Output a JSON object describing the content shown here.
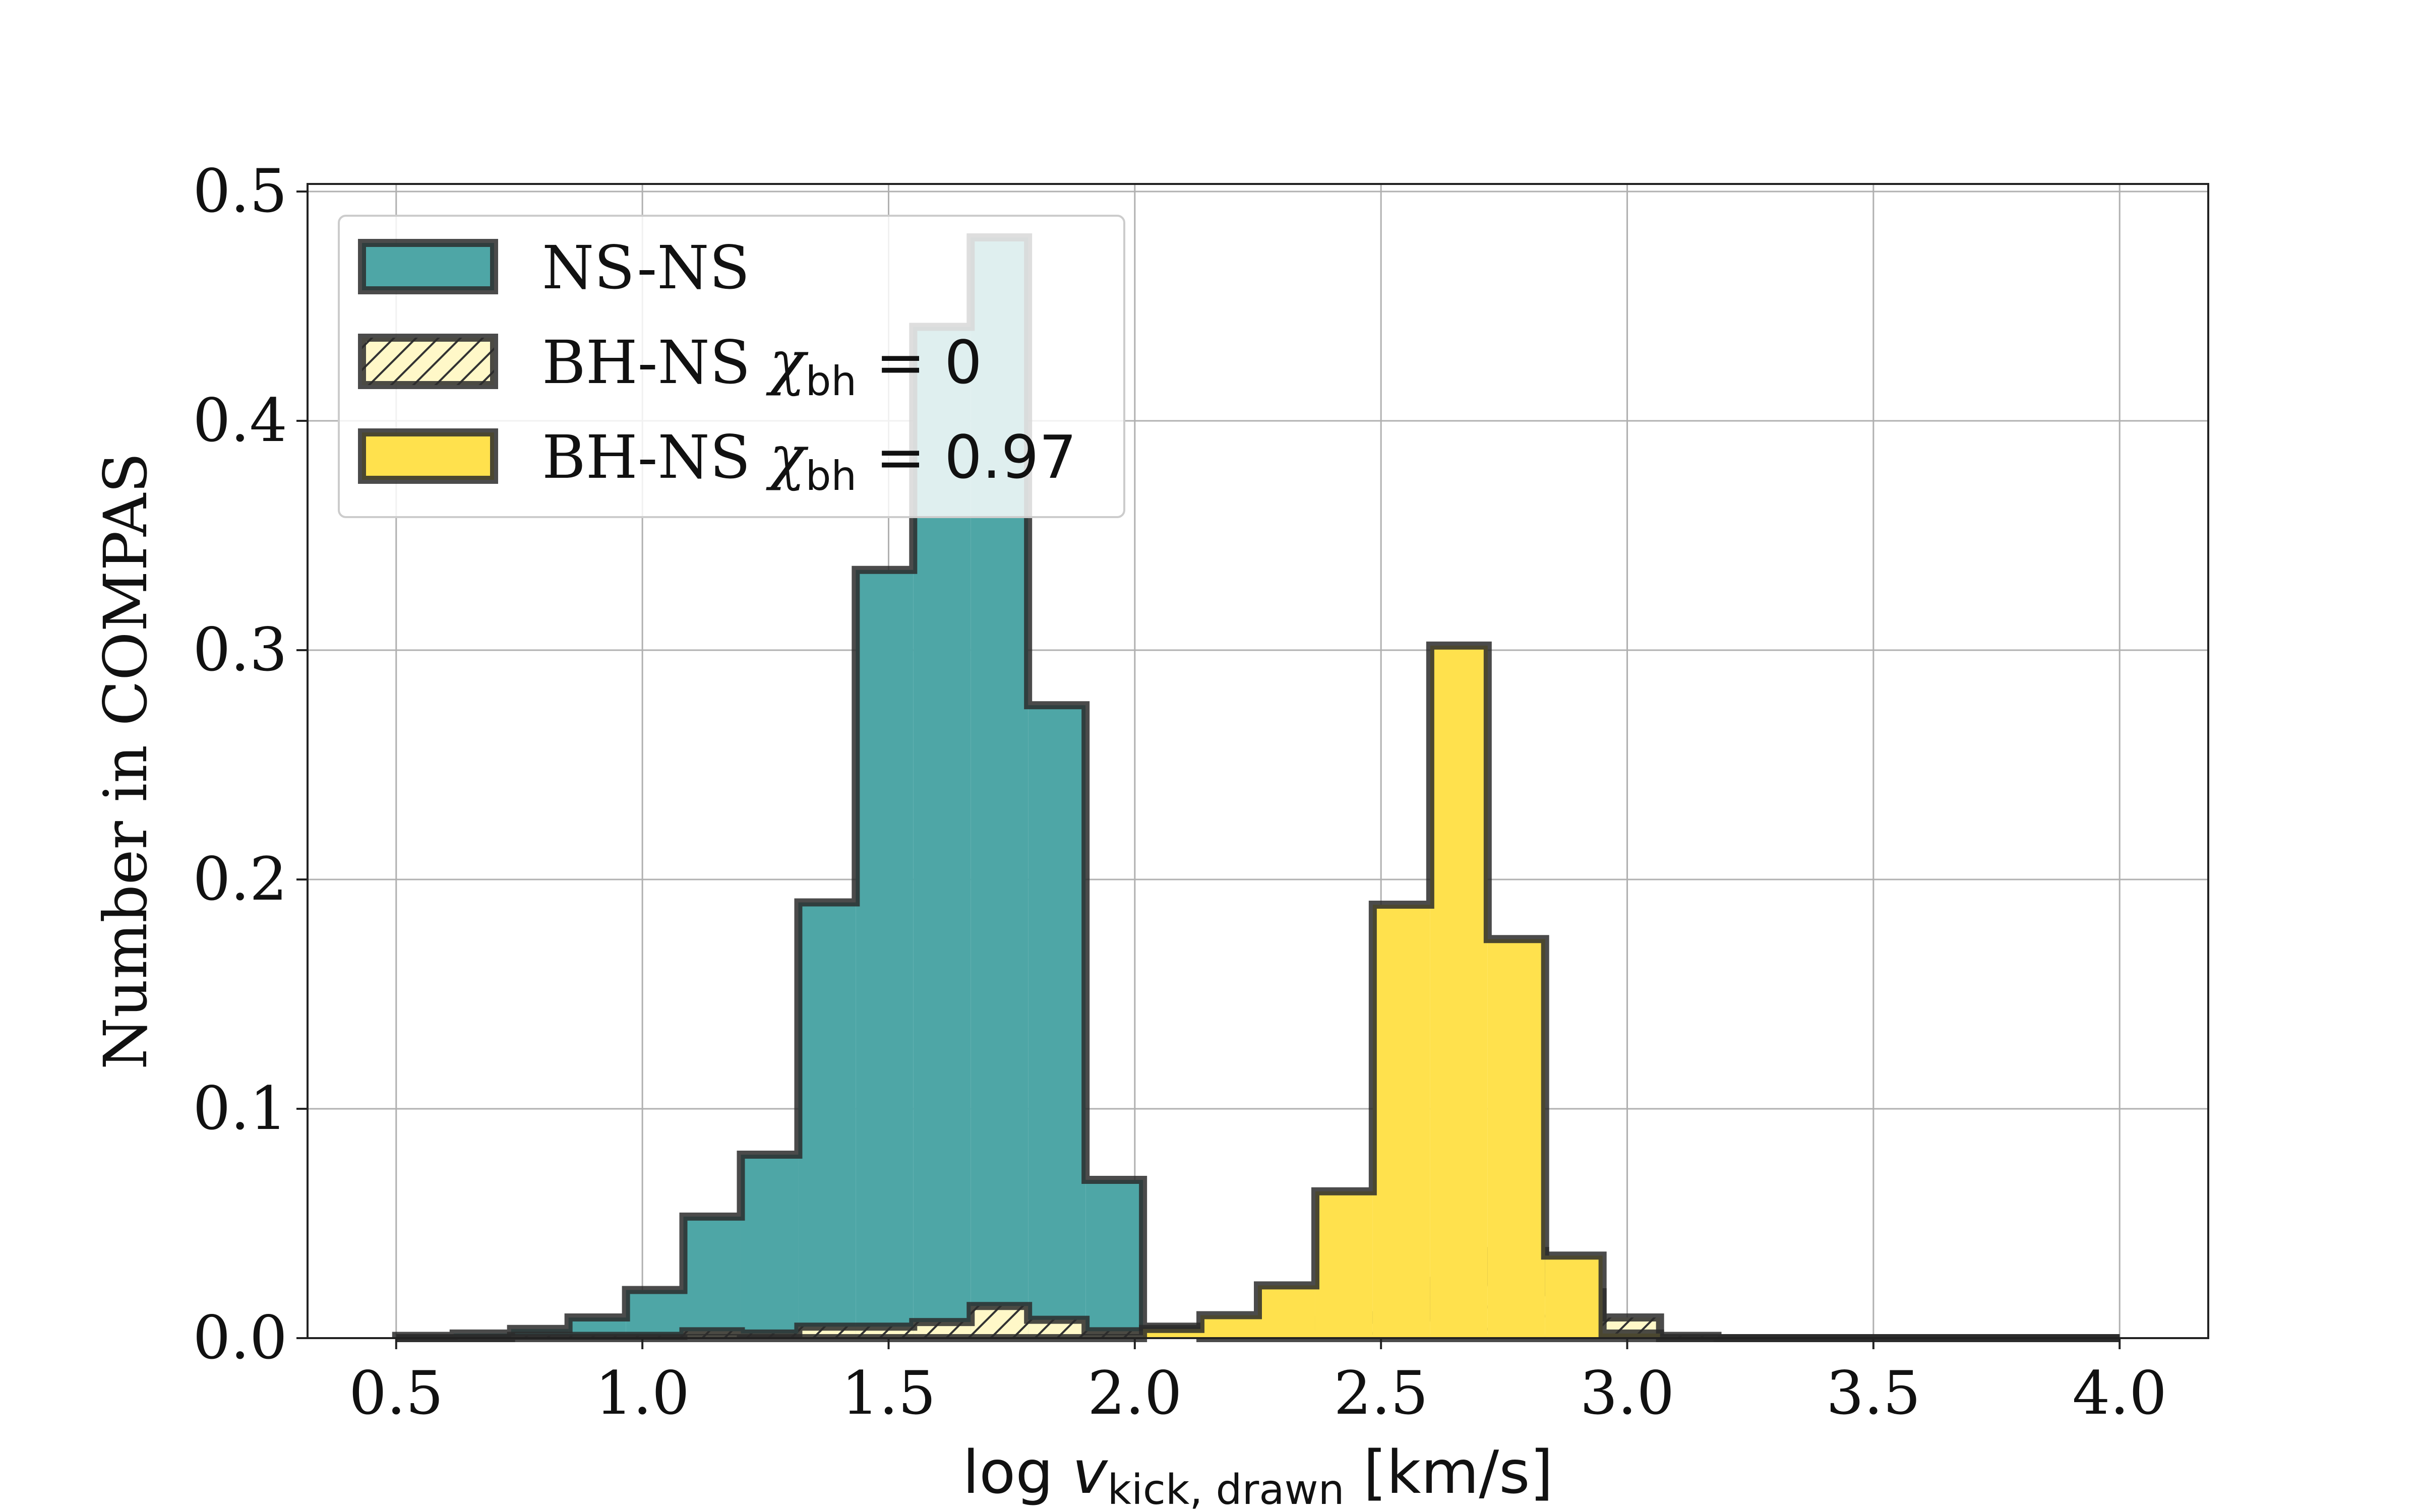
{
  "chart_data": {
    "type": "histogram",
    "xlabel": "log v_kick, drawn [km/s]",
    "xlabel_parts": {
      "prefix": "log ",
      "var": "v",
      "sub": "kick, drawn",
      "suffix": " [km/s]"
    },
    "ylabel": "Number in COMPAS",
    "xlim": [
      0.32,
      4.18
    ],
    "ylim": [
      0,
      0.5
    ],
    "xticks": [
      0.5,
      1.0,
      1.5,
      2.0,
      2.5,
      3.0,
      3.5,
      4.0
    ],
    "xtick_labels": [
      "0.5",
      "1.0",
      "1.5",
      "2.0",
      "2.5",
      "3.0",
      "3.5",
      "4.0"
    ],
    "yticks": [
      0,
      0.1,
      0.2,
      0.3,
      0.4,
      0.5
    ],
    "ytick_labels": [
      "0.0",
      "0.1",
      "0.2",
      "0.3",
      "0.4",
      "0.5"
    ],
    "grid": true,
    "legend_position": "top-left",
    "bin_edges": [
      0.5,
      0.6167,
      0.7333,
      0.85,
      0.9667,
      1.0833,
      1.2,
      1.3167,
      1.4333,
      1.55,
      1.6667,
      1.7833,
      1.9,
      2.0167,
      2.1333,
      2.25,
      2.3667,
      2.4833,
      2.6,
      2.7167,
      2.8333,
      2.95,
      3.0667,
      3.1833,
      3.3,
      3.4167,
      3.5333,
      3.65,
      3.7667,
      3.8833,
      4.0
    ],
    "series": [
      {
        "name": "NS-NS",
        "style": "filled",
        "color": "#4ea6a6",
        "edge_color": "#2b2b2b",
        "values": [
          0.001,
          0.002,
          0.004,
          0.009,
          0.021,
          0.053,
          0.08,
          0.19,
          0.335,
          0.441,
          0.48,
          0.276,
          0.069,
          0.005,
          0.0,
          0.0,
          0.0,
          0.0,
          0.0,
          0.0,
          0.0,
          0.0,
          0.0,
          0.0,
          0.0,
          0.0,
          0.0,
          0.0,
          0.0,
          0.0
        ]
      },
      {
        "name": "BH-NS χbh = 0",
        "legend_prefix": "BH-NS ",
        "legend_symbol": "χ",
        "legend_sub": "bh",
        "legend_value": " = 0",
        "style": "hatched",
        "color": "#fff8c8",
        "edge_color": "#2b2b2b",
        "values": [
          0.0,
          0.0,
          0.001,
          0.001,
          0.001,
          0.003,
          0.002,
          0.005,
          0.005,
          0.007,
          0.014,
          0.008,
          0.003,
          0.003,
          0.003,
          0.005,
          0.008,
          0.01,
          0.025,
          0.038,
          0.02,
          0.009,
          0.001,
          0.0,
          0.0,
          0.0,
          0.0,
          0.0,
          0.0,
          0.0
        ]
      },
      {
        "name": "BH-NS χbh = 0.97",
        "legend_prefix": "BH-NS ",
        "legend_symbol": "χ",
        "legend_sub": "bh",
        "legend_value": " = 0.97",
        "style": "filled",
        "color": "#ffe14d",
        "edge_color": "#2b2b2b",
        "values": [
          0.0,
          0.0,
          0.0,
          0.0,
          0.0,
          0.0,
          0.0,
          0.0,
          0.0,
          0.0,
          0.0,
          0.0,
          0.0,
          0.004,
          0.01,
          0.023,
          0.064,
          0.189,
          0.302,
          0.174,
          0.036,
          0.002,
          0.0,
          0.0,
          0.0,
          0.0,
          0.0,
          0.0,
          0.0,
          0.0
        ]
      }
    ]
  }
}
